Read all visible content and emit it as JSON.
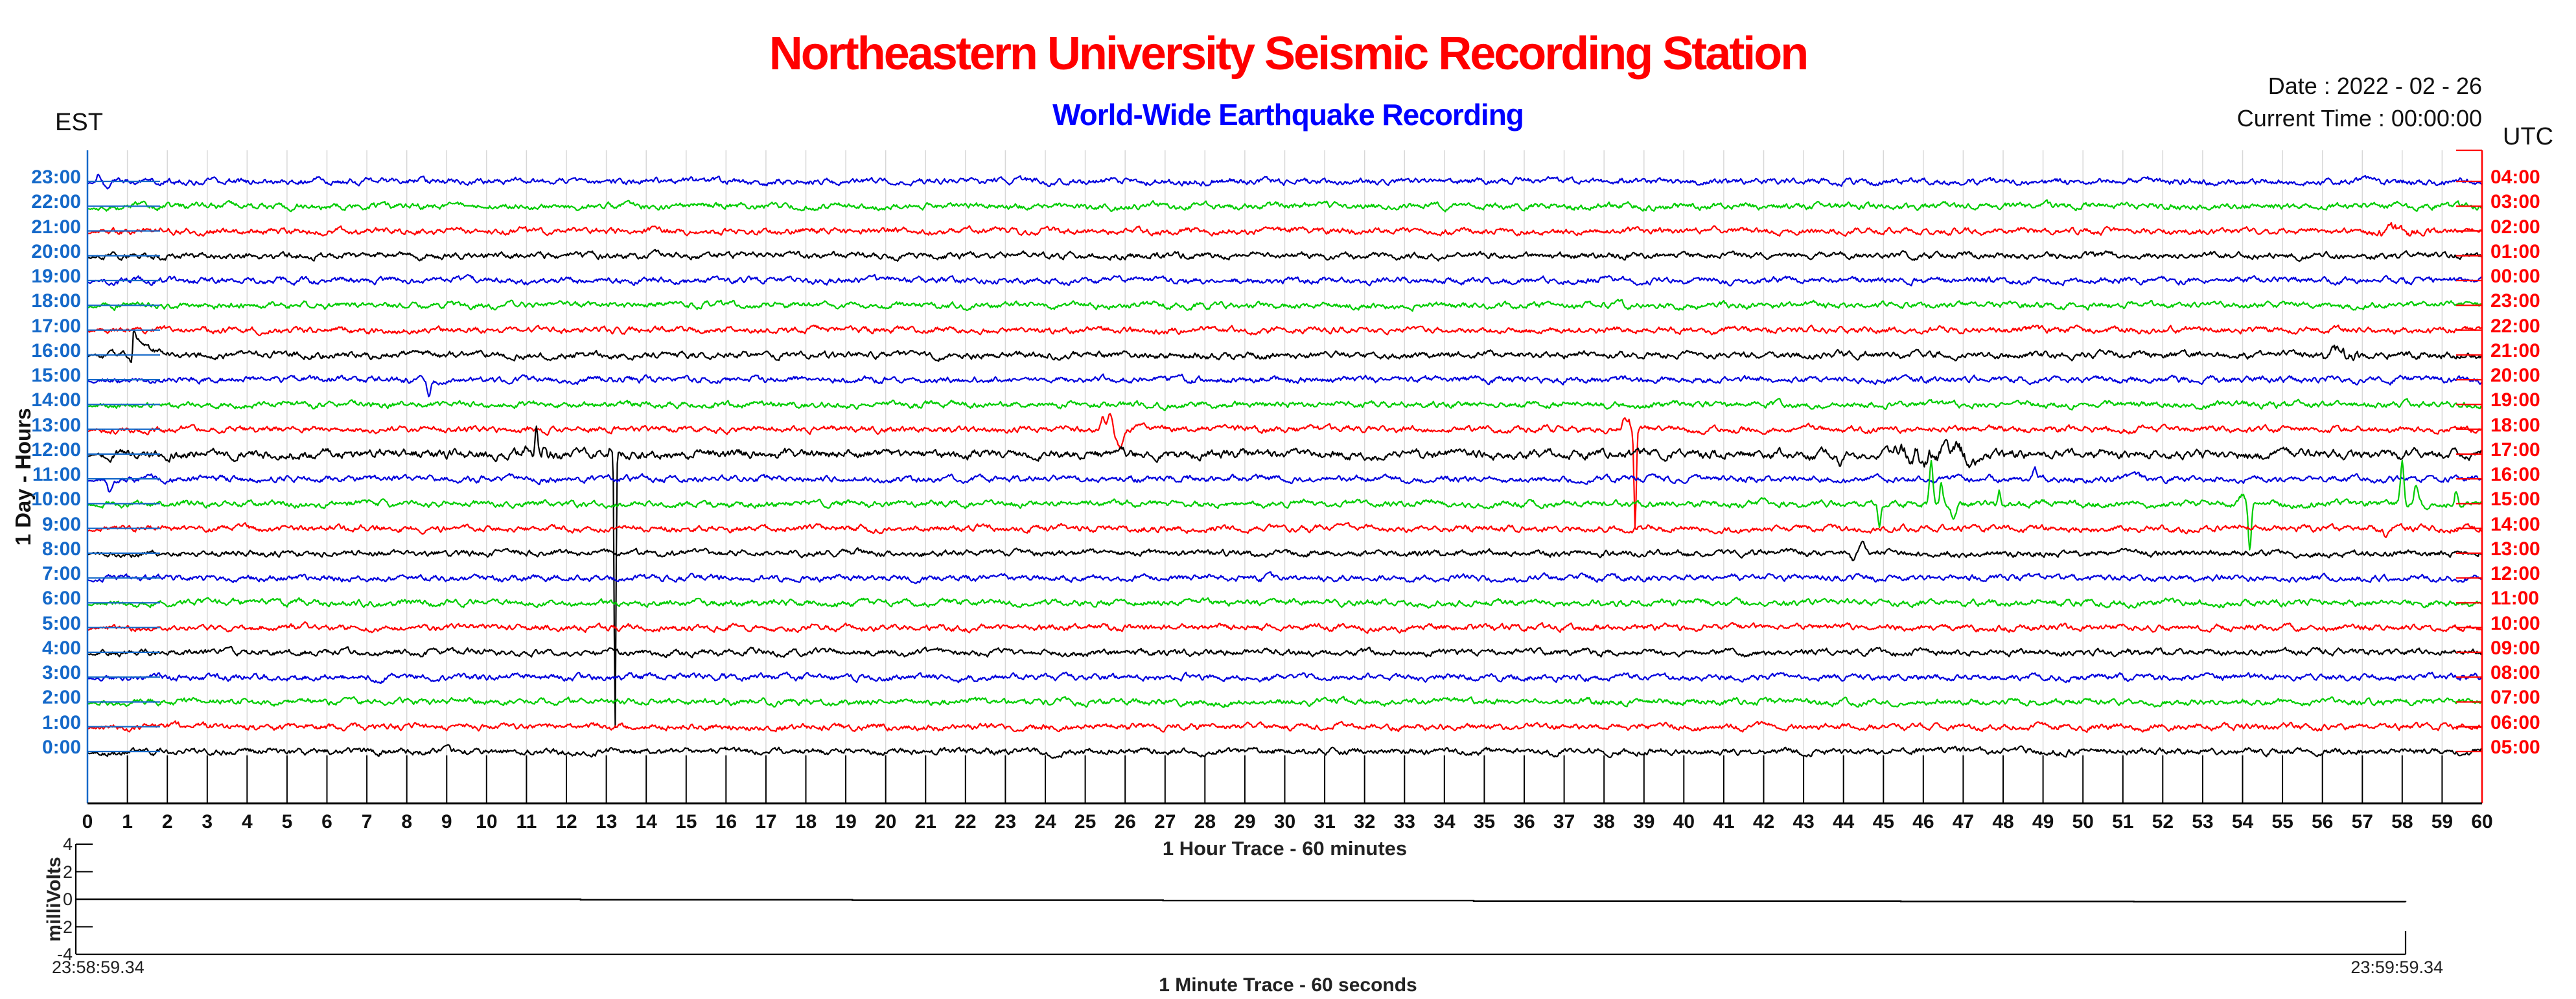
{
  "header": {
    "title": "Northeastern University Seismic Recording Station",
    "subtitle": "World-Wide Earthquake Recording",
    "date_label": "Date : 2022 - 02 - 26",
    "time_label": "Current Time : 00:00:00",
    "left_tz": "EST",
    "right_tz": "UTC"
  },
  "colors": {
    "title": "#ff0000",
    "subtitle": "#0000ff",
    "est_axis": "#1569c9",
    "utc_axis": "#ff0000",
    "grid": "#d8d8d8",
    "trace_blue": "#0000dd",
    "trace_green": "#00cc00",
    "trace_red": "#ff0000",
    "trace_black": "#000000"
  },
  "chart_data": {
    "type": "line",
    "title": "Northeastern University Seismic Recording Station",
    "subtitle": "World-Wide Earthquake Recording",
    "left_axis": {
      "tz": "EST",
      "label": "1 Day - Hours"
    },
    "right_axis": {
      "tz": "UTC"
    },
    "x_axis": {
      "label": "1 Hour Trace - 60 minutes",
      "min": 0,
      "max": 60,
      "tick_step": 1,
      "grid": true
    },
    "palette_cycle": [
      "blue",
      "green",
      "red",
      "black"
    ],
    "traces": [
      {
        "est": "23:00",
        "utc": "04:00",
        "color": "blue",
        "noise": 6.5,
        "events": [
          {
            "t": 0.28,
            "amp": 12,
            "w": 0.05
          },
          {
            "t": 0.5,
            "amp": -14,
            "w": 0.09
          }
        ]
      },
      {
        "est": "22:00",
        "utc": "03:00",
        "color": "green",
        "noise": 6.5,
        "events": []
      },
      {
        "est": "21:00",
        "utc": "02:00",
        "color": "red",
        "noise": 6.5,
        "events": [
          {
            "kind": "burst",
            "t0": 57.2,
            "t1": 58.4,
            "mult": 1.8
          }
        ]
      },
      {
        "est": "20:00",
        "utc": "01:00",
        "color": "black",
        "noise": 6.5,
        "events": []
      },
      {
        "est": "19:00",
        "utc": "00:00",
        "color": "blue",
        "noise": 6.5,
        "events": []
      },
      {
        "est": "18:00",
        "utc": "23:00",
        "color": "green",
        "noise": 6.5,
        "events": []
      },
      {
        "est": "17:00",
        "utc": "22:00",
        "color": "red",
        "noise": 6.5,
        "events": []
      },
      {
        "est": "16:00",
        "utc": "21:00",
        "color": "black",
        "noise": 7,
        "events": [
          {
            "t": 1.08,
            "amp": -10,
            "w": 0.05
          },
          {
            "kind": "decay",
            "t": 1.15,
            "amp": 38,
            "tau": 0.3
          },
          {
            "kind": "burst",
            "t0": 56.0,
            "t1": 57.0,
            "mult": 1.9
          }
        ]
      },
      {
        "est": "15:00",
        "utc": "20:00",
        "color": "blue",
        "noise": 6.5,
        "events": [
          {
            "t": 8.55,
            "amp": -24,
            "w": 0.06
          }
        ]
      },
      {
        "est": "14:00",
        "utc": "19:00",
        "color": "green",
        "noise": 6.5,
        "events": []
      },
      {
        "est": "13:00",
        "utc": "18:00",
        "color": "red",
        "noise": 6.5,
        "events": [
          {
            "t": 25.45,
            "amp": 20,
            "w": 0.06
          },
          {
            "t": 25.62,
            "amp": 26,
            "w": 0.07
          },
          {
            "t": 25.88,
            "amp": -28,
            "w": 0.13
          },
          {
            "t": 38.5,
            "amp": 16,
            "w": 0.07
          },
          {
            "t": 38.62,
            "amp": 14,
            "w": 0.05
          },
          {
            "t": 38.78,
            "amp": -153,
            "w": 0.04
          }
        ]
      },
      {
        "est": "12:00",
        "utc": "17:00",
        "color": "black",
        "noise": 9,
        "events": [
          {
            "kind": "burst",
            "t0": 10.9,
            "t1": 11.9,
            "mult": 1.5
          },
          {
            "t": 11.25,
            "amp": 46,
            "w": 0.05
          },
          {
            "t": 11.45,
            "amp": 16,
            "w": 0.05
          },
          {
            "t": 13.1,
            "amp": 10,
            "w": 0.05
          },
          {
            "t": 13.22,
            "amp": -436,
            "w": 0.03
          },
          {
            "t": 43.9,
            "amp": -16,
            "w": 0.1
          },
          {
            "kind": "burst",
            "t0": 45.2,
            "t1": 47.3,
            "mult": 2.2
          }
        ]
      },
      {
        "est": "11:00",
        "utc": "16:00",
        "color": "blue",
        "noise": 6.5,
        "events": [
          {
            "t": 0.55,
            "amp": -20,
            "w": 0.08
          },
          {
            "t": 48.8,
            "amp": 14,
            "w": 0.06
          }
        ]
      },
      {
        "est": "10:00",
        "utc": "15:00",
        "color": "green",
        "noise": 6.5,
        "events": [
          {
            "t": 44.9,
            "amp": -38,
            "w": 0.05
          },
          {
            "t": 46.2,
            "amp": 62,
            "w": 0.06
          },
          {
            "t": 46.45,
            "amp": 36,
            "w": 0.05
          },
          {
            "t": 46.75,
            "amp": -20,
            "w": 0.09
          },
          {
            "t": 47.9,
            "amp": 22,
            "w": 0.05
          },
          {
            "t": 54.0,
            "amp": 12,
            "w": 0.09
          },
          {
            "t": 54.18,
            "amp": -76,
            "w": 0.05
          },
          {
            "t": 58.0,
            "amp": 67,
            "w": 0.06
          },
          {
            "t": 58.35,
            "amp": 30,
            "w": 0.07
          },
          {
            "t": 58.6,
            "amp": -16,
            "w": 0.08
          },
          {
            "t": 59.35,
            "amp": 22,
            "w": 0.05
          }
        ]
      },
      {
        "est": "9:00",
        "utc": "14:00",
        "color": "red",
        "noise": 6.5,
        "events": [
          {
            "t": 57.6,
            "amp": -14,
            "w": 0.08
          }
        ]
      },
      {
        "est": "8:00",
        "utc": "13:00",
        "color": "black",
        "noise": 6.5,
        "events": [
          {
            "t": 44.25,
            "amp": -14,
            "w": 0.08
          },
          {
            "t": 44.5,
            "amp": 16,
            "w": 0.09
          }
        ]
      },
      {
        "est": "7:00",
        "utc": "12:00",
        "color": "blue",
        "noise": 6.5,
        "events": []
      },
      {
        "est": "6:00",
        "utc": "11:00",
        "color": "green",
        "noise": 6.5,
        "events": []
      },
      {
        "est": "5:00",
        "utc": "10:00",
        "color": "red",
        "noise": 6.5,
        "events": []
      },
      {
        "est": "4:00",
        "utc": "09:00",
        "color": "black",
        "noise": 6.5,
        "events": []
      },
      {
        "est": "3:00",
        "utc": "08:00",
        "color": "blue",
        "noise": 6.5,
        "events": []
      },
      {
        "est": "2:00",
        "utc": "07:00",
        "color": "green",
        "noise": 6.5,
        "events": []
      },
      {
        "est": "1:00",
        "utc": "06:00",
        "color": "red",
        "noise": 6.5,
        "events": []
      },
      {
        "est": "0:00",
        "utc": "05:00",
        "color": "black",
        "noise": 6.5,
        "events": []
      }
    ],
    "minute_plot": {
      "ylabel": "milliVolts",
      "xlabel": "1 Minute Trace  - 60 seconds",
      "y_ticks": [
        4,
        2,
        0,
        -2,
        -4
      ],
      "y_range": [
        -4,
        4
      ],
      "x_range_seconds": [
        0,
        60
      ],
      "window_start": "23:58:59.34",
      "window_end": "23:59:59.34",
      "trace_mv": [
        [
          0,
          0
        ],
        [
          10,
          0
        ],
        [
          13,
          -0.04
        ],
        [
          20,
          -0.07
        ],
        [
          28,
          -0.1
        ],
        [
          36,
          -0.13
        ],
        [
          47,
          -0.16
        ],
        [
          53,
          -0.18
        ],
        [
          60,
          -0.2
        ]
      ]
    }
  }
}
